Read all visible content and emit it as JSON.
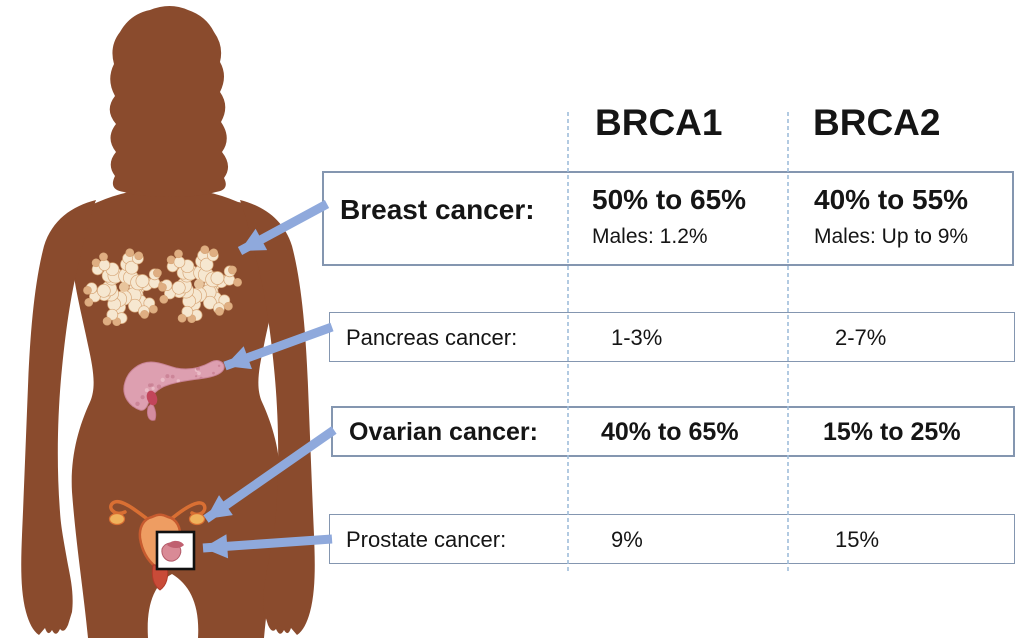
{
  "table": {
    "columns": [
      "BRCA1",
      "BRCA2"
    ],
    "rows": [
      {
        "label": "Breast cancer:",
        "brca1": "50% to 65%",
        "brca1_note": "Males: 1.2%",
        "brca2": "40% to 55%",
        "brca2_note": "Males: Up to 9%",
        "emphasis": true
      },
      {
        "label": "Pancreas cancer:",
        "brca1": "1-3%",
        "brca2": "2-7%",
        "emphasis": false
      },
      {
        "label": "Ovarian cancer:",
        "brca1": "40% to 65%",
        "brca2": "15% to 25%",
        "emphasis": true
      },
      {
        "label": "Prostate cancer:",
        "brca1": "9%",
        "brca2": "15%",
        "emphasis": false
      }
    ]
  },
  "figure": {
    "body_color": "#8a4b2d",
    "arrow_color": "#8fa9dc",
    "gland_fill": "#f6e7d0",
    "gland_tip": "#dfae82",
    "gland_stroke": "#d8a87a",
    "pancreas_fill": "#dd9fb0",
    "uterus_stroke": "#c75b2f",
    "organs": [
      "mammary-glands",
      "pancreas",
      "uterus-fallopian-tubes-ovaries",
      "prostate-inset-box"
    ]
  },
  "colors": {
    "row_border": "#8496b0",
    "column_divider": "#9fbdda",
    "text": "#151515",
    "background": "#ffffff",
    "prostate_box_border": "#111111"
  }
}
